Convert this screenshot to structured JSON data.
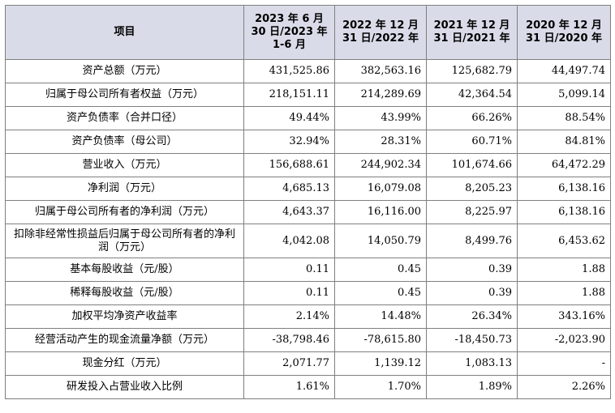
{
  "headers": [
    {
      "lines": [
        "项目"
      ]
    },
    {
      "lines": [
        "2023 年 6 月",
        "30 日/2023 年",
        "1-6 月"
      ]
    },
    {
      "lines": [
        "2022 年 12 月",
        "31 日/2022 年"
      ]
    },
    {
      "lines": [
        "2021 年 12 月",
        "31 日/2021 年"
      ]
    },
    {
      "lines": [
        "2020 年 12 月",
        "31 日/2020 年"
      ]
    }
  ],
  "rows": [
    {
      "label": "资产总额（万元）",
      "values": [
        "431,525.86",
        "382,563.16",
        "125,682.79",
        "44,497.74"
      ]
    },
    {
      "label": "归属于母公司所有者权益（万元）",
      "values": [
        "218,151.11",
        "214,289.69",
        "42,364.54",
        "5,099.14"
      ]
    },
    {
      "label": "资产负债率（合并口径）",
      "values": [
        "49.44%",
        "43.99%",
        "66.26%",
        "88.54%"
      ]
    },
    {
      "label": "资产负债率（母公司）",
      "values": [
        "32.94%",
        "28.31%",
        "60.71%",
        "84.81%"
      ]
    },
    {
      "label": "营业收入（万元）",
      "values": [
        "156,688.61",
        "244,902.34",
        "101,674.66",
        "64,472.29"
      ]
    },
    {
      "label": "净利润（万元）",
      "values": [
        "4,685.13",
        "16,079.08",
        "8,205.23",
        "6,138.16"
      ]
    },
    {
      "label": "归属于母公司所有者的净利润（万元）",
      "values": [
        "4,643.37",
        "16,116.00",
        "8,225.97",
        "6,138.16"
      ]
    },
    {
      "label": "扣除非经常性损益后归属于母公司所有者的净利润（万元）",
      "values": [
        "4,042.08",
        "14,050.79",
        "8,499.76",
        "6,453.62"
      ]
    },
    {
      "label": "基本每股收益（元/股）",
      "values": [
        "0.11",
        "0.45",
        "0.39",
        "1.88"
      ]
    },
    {
      "label": "稀释每股收益（元/股）",
      "values": [
        "0.11",
        "0.45",
        "0.39",
        "1.88"
      ]
    },
    {
      "label": "加权平均净资产收益率",
      "values": [
        "2.14%",
        "14.48%",
        "26.34%",
        "343.16%"
      ]
    },
    {
      "label": "经营活动产生的现金流量净额（万元）",
      "values": [
        "-38,798.46",
        "-78,615.80",
        "-18,450.73",
        "-2,023.90"
      ]
    },
    {
      "label": "现金分红（万元）",
      "values": [
        "2,071.77",
        "1,139.12",
        "1,083.13",
        "-"
      ]
    },
    {
      "label": "研发投入占营业收入比例",
      "values": [
        "1.61%",
        "1.70%",
        "1.89%",
        "2.26%"
      ]
    }
  ]
}
